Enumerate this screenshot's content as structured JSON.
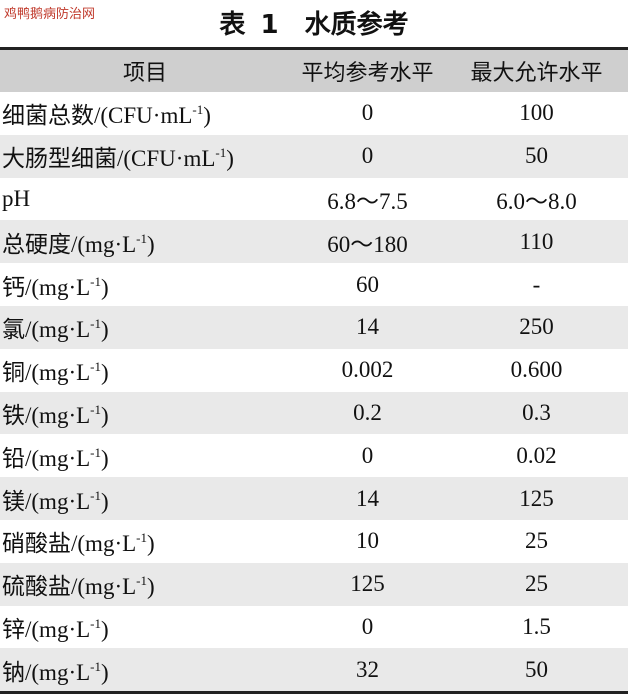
{
  "watermark": "鸡鸭鹅病防治网",
  "title": "表 1　水质参考",
  "table": {
    "header": [
      "项目",
      "平均参考水平",
      "最大允许水平"
    ],
    "rows": [
      [
        {
          "name": "细菌总数/(CFU·mL",
          "sup": "-1",
          "close": ")"
        },
        "0",
        "100"
      ],
      [
        {
          "name": "大肠型细菌/(CFU·mL",
          "sup": "-1",
          "close": ")"
        },
        "0",
        "50"
      ],
      [
        {
          "name": "pH"
        },
        "6.8～7.5",
        "6.0～8.0"
      ],
      [
        {
          "name": "总硬度/(mg·L",
          "sup": "-1",
          "close": ")"
        },
        "60～180",
        "110"
      ],
      [
        {
          "name": "钙/(mg·L",
          "sup": "-1",
          "close": ")"
        },
        "60",
        "-"
      ],
      [
        {
          "name": "氯/(mg·L",
          "sup": "-1",
          "close": ")"
        },
        "14",
        "250"
      ],
      [
        {
          "name": "铜/(mg·L",
          "sup": "-1",
          "close": ")"
        },
        "0.002",
        "0.600"
      ],
      [
        {
          "name": "铁/(mg·L",
          "sup": "-1",
          "close": ")"
        },
        "0.2",
        "0.3"
      ],
      [
        {
          "name": "铅/(mg·L",
          "sup": "-1",
          "close": ")"
        },
        "0",
        "0.02"
      ],
      [
        {
          "name": "镁/(mg·L",
          "sup": "-1",
          "close": ")"
        },
        "14",
        "125"
      ],
      [
        {
          "name": "硝酸盐/(mg·L",
          "sup": "-1",
          "close": ")"
        },
        "10",
        "25"
      ],
      [
        {
          "name": "硫酸盐/(mg·L",
          "sup": "-1",
          "close": ")"
        },
        "125",
        "25"
      ],
      [
        {
          "name": "锌/(mg·L",
          "sup": "-1",
          "close": ")"
        },
        "0",
        "1.5"
      ],
      [
        {
          "name": "钠/(mg·L",
          "sup": "-1",
          "close": ")"
        },
        "32",
        "50"
      ]
    ]
  }
}
